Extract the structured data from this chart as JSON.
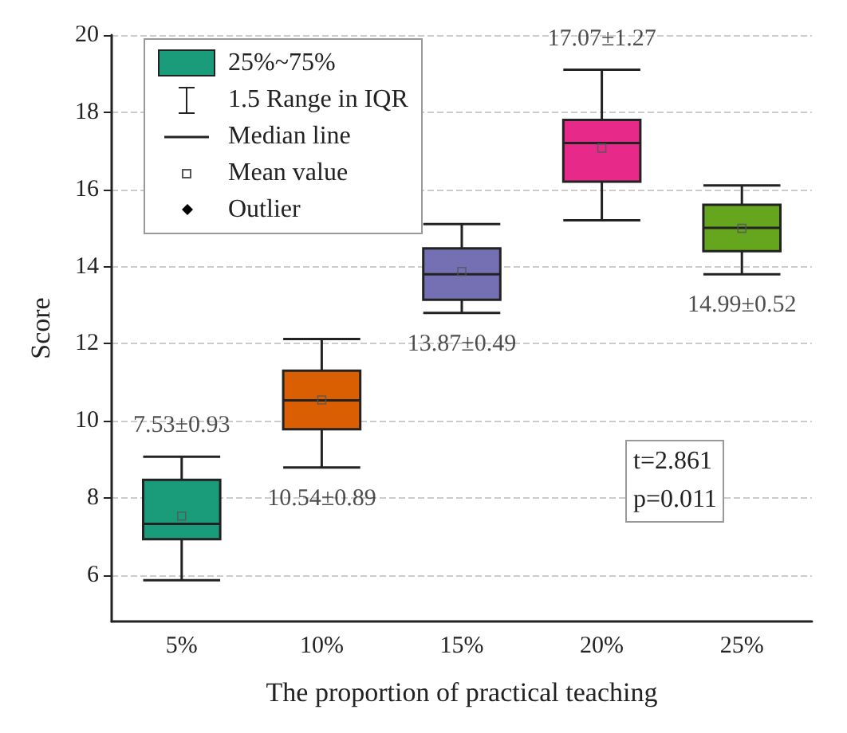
{
  "chart_data": {
    "type": "box",
    "xlabel": "The proportion of practical teaching",
    "ylabel": "Score",
    "categories": [
      "5%",
      "10%",
      "15%",
      "20%",
      "25%"
    ],
    "colors": [
      "#1a9c7a",
      "#d95f02",
      "#7570b3",
      "#e7298a",
      "#66a61e"
    ],
    "boxes": [
      {
        "low": 5.87,
        "q1": 6.93,
        "median": 7.33,
        "q3": 8.47,
        "high": 9.07,
        "mean": 7.53
      },
      {
        "low": 8.79,
        "q1": 9.78,
        "median": 10.53,
        "q3": 11.3,
        "high": 12.12,
        "mean": 10.54
      },
      {
        "low": 12.8,
        "q1": 13.14,
        "median": 13.8,
        "q3": 14.47,
        "high": 15.1,
        "mean": 13.87
      },
      {
        "low": 15.2,
        "q1": 16.2,
        "median": 17.2,
        "q3": 17.8,
        "high": 19.1,
        "mean": 17.07
      },
      {
        "low": 13.8,
        "q1": 14.4,
        "median": 15.0,
        "q3": 15.6,
        "high": 16.1,
        "mean": 14.99
      }
    ],
    "ylim": [
      4.8,
      20
    ],
    "yticks": [
      6,
      8,
      10,
      12,
      14,
      16,
      18,
      20
    ],
    "grid": "y",
    "annotations": [
      "25%~75%",
      "1.5 Range in IQR",
      "Median line",
      "Mean value",
      "Outlier",
      "t=2.861\np=0.011",
      "7.53±0.93",
      "10.54±0.89",
      "13.87±0.49",
      "17.07±1.27",
      "14.99±0.52"
    ]
  }
}
